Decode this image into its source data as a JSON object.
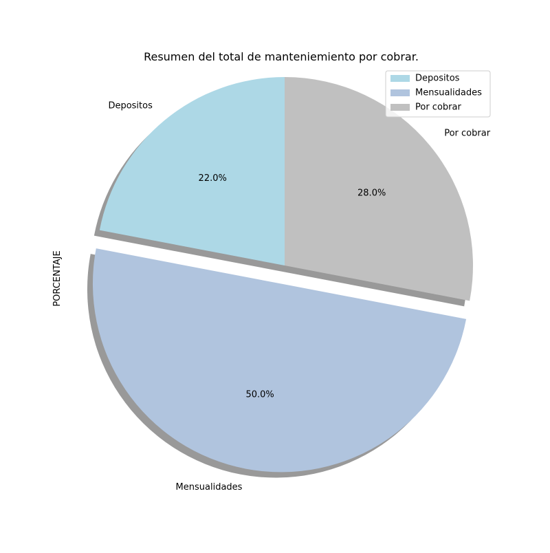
{
  "chart_data": {
    "type": "pie",
    "title": "Resumen del total de manteniemiento por cobrar.",
    "ylabel": "PORCENTAJE",
    "categories": [
      "Depositos",
      "Mensualidades",
      "Por cobrar"
    ],
    "values": [
      22.0,
      50.0,
      28.0
    ],
    "percent_labels": [
      "22.0%",
      "50.0%",
      "28.0%"
    ],
    "colors": [
      "#add8e6",
      "#b0c4de",
      "#c0c0c0"
    ],
    "exploded": [
      false,
      true,
      false
    ],
    "shadow": true,
    "start_angle_deg": 90,
    "direction": "counterclockwise",
    "legend": {
      "placement": "top-right",
      "entries": [
        "Depositos",
        "Mensualidades",
        "Por cobrar"
      ]
    }
  }
}
